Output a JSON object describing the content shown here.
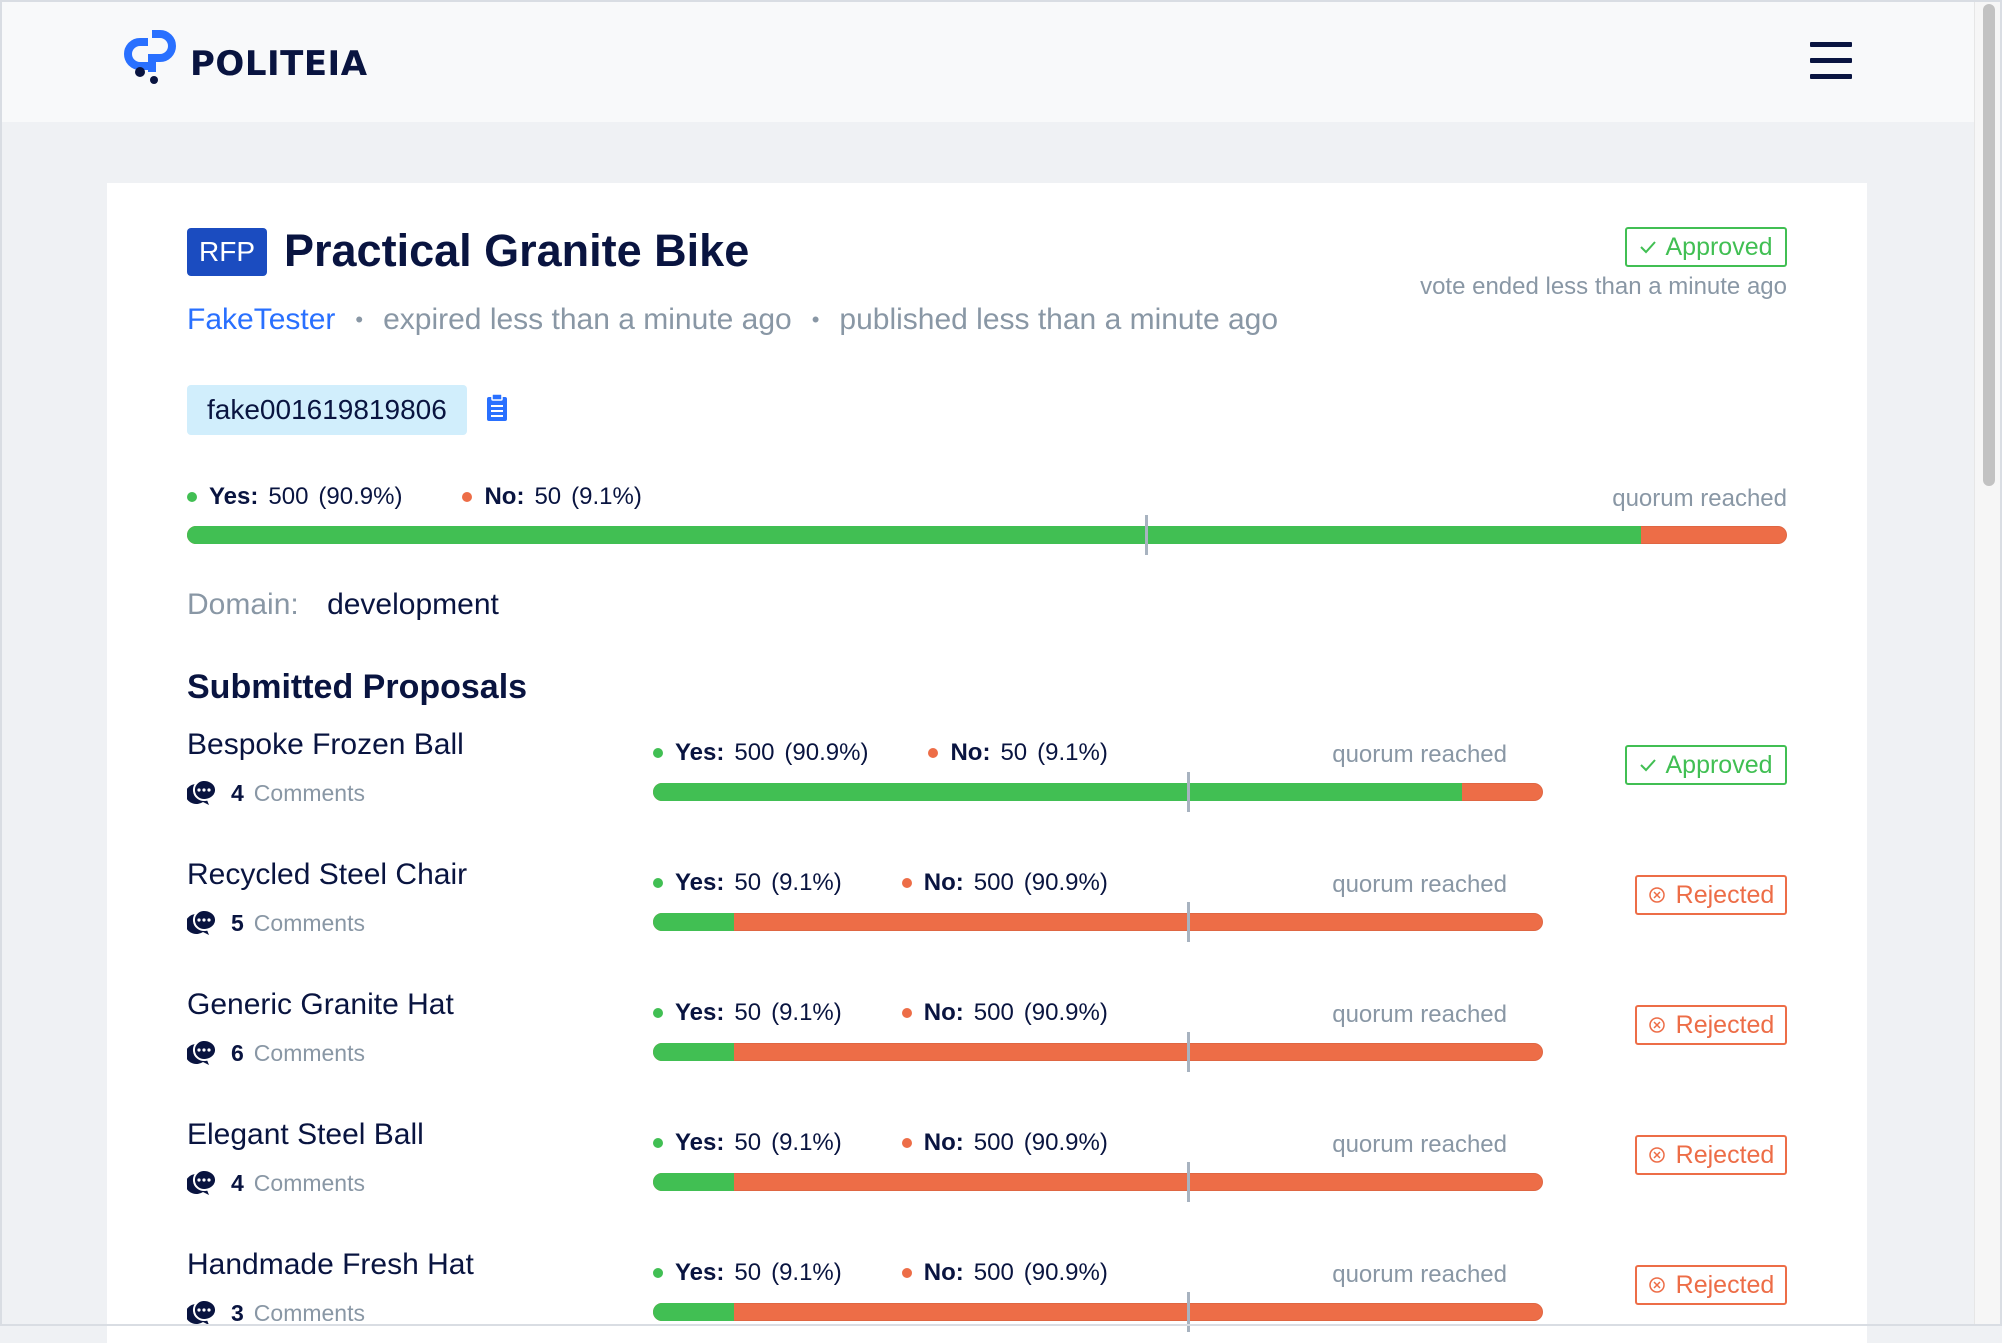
{
  "header": {
    "logo_text": "POLITEIA",
    "menu_icon": "hamburger-menu-icon"
  },
  "rfp": {
    "badge": "RFP",
    "title": "Practical Granite Bike",
    "author": "FakeTester",
    "expired": "expired less than a minute ago",
    "published": "published less than a minute ago",
    "status": "Approved",
    "vote_ended": "vote ended less than a minute ago",
    "token": "fake001619819806",
    "votes": {
      "yes_label": "Yes:",
      "yes_count": "500",
      "yes_pct": "(90.9%)",
      "no_label": "No:",
      "no_count": "50",
      "no_pct": "(9.1%)",
      "yes_fraction": 0.909,
      "quorum": "quorum reached"
    },
    "domain_label": "Domain:",
    "domain_value": "development"
  },
  "submitted": {
    "heading": "Submitted Proposals",
    "comments_label": "Comments",
    "items": [
      {
        "name": "Bespoke Frozen Ball",
        "comments": "4",
        "yes_count": "500",
        "yes_pct": "(90.9%)",
        "no_count": "50",
        "no_pct": "(9.1%)",
        "yes_fraction": 0.909,
        "quorum": "quorum reached",
        "status": "Approved"
      },
      {
        "name": "Recycled Steel Chair",
        "comments": "5",
        "yes_count": "50",
        "yes_pct": "(9.1%)",
        "no_count": "500",
        "no_pct": "(90.9%)",
        "yes_fraction": 0.091,
        "quorum": "quorum reached",
        "status": "Rejected"
      },
      {
        "name": "Generic Granite Hat",
        "comments": "6",
        "yes_count": "50",
        "yes_pct": "(9.1%)",
        "no_count": "500",
        "no_pct": "(90.9%)",
        "yes_fraction": 0.091,
        "quorum": "quorum reached",
        "status": "Rejected"
      },
      {
        "name": "Elegant Steel Ball",
        "comments": "4",
        "yes_count": "50",
        "yes_pct": "(9.1%)",
        "no_count": "500",
        "no_pct": "(90.9%)",
        "yes_fraction": 0.091,
        "quorum": "quorum reached",
        "status": "Rejected"
      },
      {
        "name": "Handmade Fresh Hat",
        "comments": "3",
        "yes_count": "50",
        "yes_pct": "(9.1%)",
        "no_count": "500",
        "no_pct": "(90.9%)",
        "yes_fraction": 0.091,
        "quorum": "quorum reached",
        "status": "Rejected"
      }
    ]
  },
  "colors": {
    "yes": "#41bf53",
    "no": "#ed6d47",
    "accent": "#2970ff",
    "navy": "#091440",
    "muted": "#8997a5"
  }
}
